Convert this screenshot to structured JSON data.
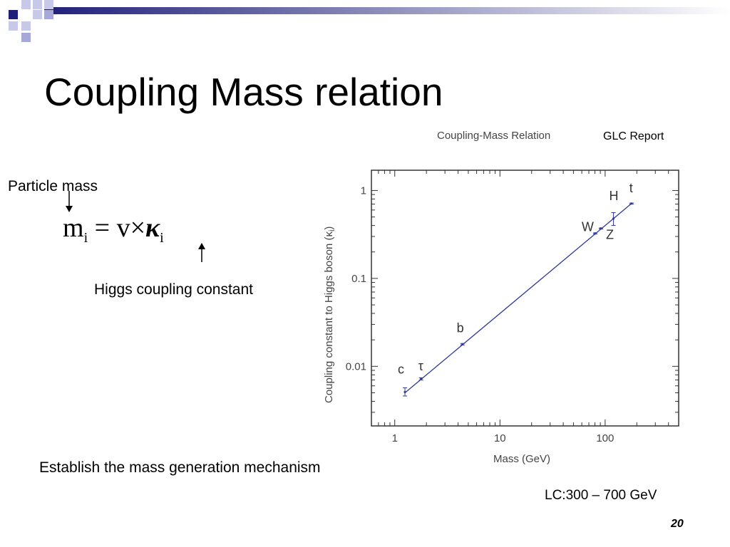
{
  "slide": {
    "title": "Coupling Mass relation",
    "source_note": "GLC Report",
    "annotation_mass": "Particle mass",
    "annotation_coupling": "Higgs coupling constant",
    "conclusion": "Establish the mass generation mechanism",
    "energy_note": "LC:300 – 700 GeV",
    "page_number": "20"
  },
  "formula": {
    "mass_symbol": "m",
    "index": "i",
    "equals": "=",
    "vev": "v",
    "times": "×",
    "kappa": "κ"
  },
  "colors": {
    "accent_dark": "#1f1f7a",
    "accent_light": "#a8a8d8",
    "data_line": "#2f3a9a"
  },
  "chart_data": {
    "type": "line",
    "title": "Coupling-Mass Relation",
    "xlabel": "Mass (GeV)",
    "ylabel": "Coupling constant to Higgs boson (κ_i)",
    "x_scale": "log",
    "y_scale": "log",
    "xlim": [
      0.6,
      500
    ],
    "ylim": [
      0.0021,
      1.7
    ],
    "x_ticks": [
      {
        "value": 1,
        "label": "1"
      },
      {
        "value": 10,
        "label": "10"
      },
      {
        "value": 100,
        "label": "100"
      }
    ],
    "y_ticks": [
      {
        "value": 0.01,
        "label": "0.01"
      },
      {
        "value": 0.1,
        "label": "0.1"
      },
      {
        "value": 1,
        "label": "1"
      }
    ],
    "grid": false,
    "fit_line": [
      [
        1.25,
        0.005
      ],
      [
        178,
        0.71
      ]
    ],
    "points": [
      {
        "label": "c",
        "mass": 1.25,
        "kappa": 0.0051,
        "err_low": 0.0046,
        "err_high": 0.0057
      },
      {
        "label": "τ",
        "mass": 1.78,
        "kappa": 0.0072,
        "err_low": 0.007,
        "err_high": 0.0074
      },
      {
        "label": "b",
        "mass": 4.4,
        "kappa": 0.0178,
        "err_low": 0.0175,
        "err_high": 0.0182
      },
      {
        "label": "W",
        "mass": 80.4,
        "kappa": 0.325,
        "err_low": 0.32,
        "err_high": 0.33
      },
      {
        "label": "Z",
        "mass": 91.2,
        "kappa": 0.37,
        "err_low": 0.365,
        "err_high": 0.375
      },
      {
        "label": "H",
        "mass": 120,
        "kappa": 0.48,
        "err_low": 0.4,
        "err_high": 0.56
      },
      {
        "label": "t",
        "mass": 178,
        "kappa": 0.71,
        "err_low": 0.7,
        "err_high": 0.72
      }
    ]
  }
}
